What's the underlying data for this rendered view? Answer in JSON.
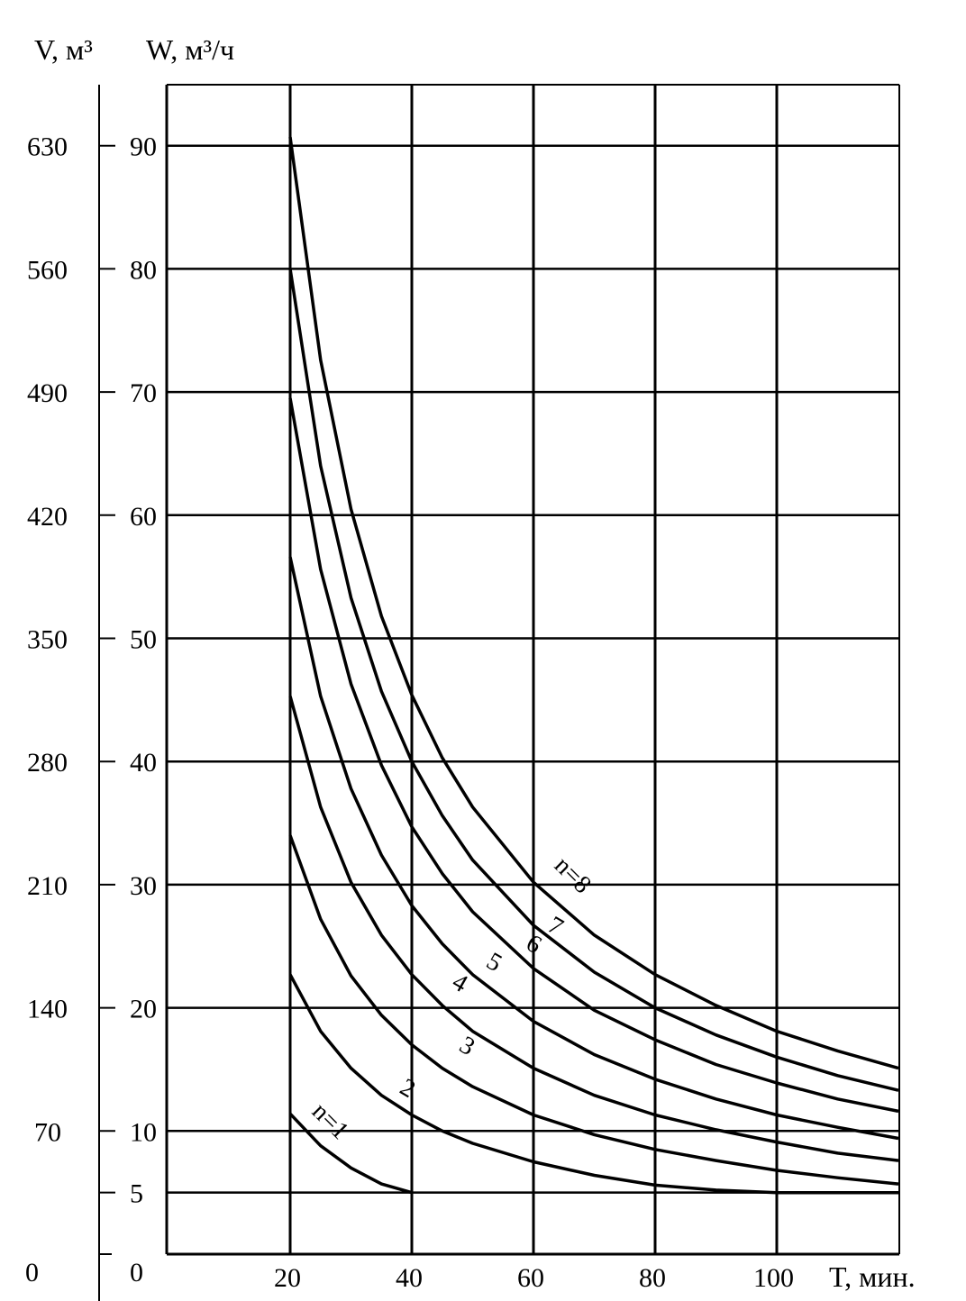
{
  "chart_data": {
    "type": "line",
    "title": "",
    "xlabel": "T, мин.",
    "ylabel_left": "V, м³",
    "ylabel_right": "W, м³/ч",
    "x_ticks": [
      "20",
      "40",
      "60",
      "80",
      "100"
    ],
    "v_ticks": [
      "0",
      "70",
      "140",
      "210",
      "280",
      "350",
      "420",
      "490",
      "560",
      "630"
    ],
    "w_ticks": [
      "0",
      "5",
      "10",
      "20",
      "30",
      "40",
      "50",
      "60",
      "70",
      "80",
      "90"
    ],
    "xlim": [
      0,
      120
    ],
    "wlim": [
      0,
      95
    ],
    "grid": true,
    "series": [
      {
        "name": "n=1",
        "label": "n=1",
        "points": [
          [
            20,
            11.4
          ],
          [
            25,
            8.8
          ],
          [
            30,
            7.0
          ],
          [
            35,
            5.7
          ],
          [
            40,
            5.0
          ]
        ]
      },
      {
        "name": "2",
        "label": "2",
        "points": [
          [
            20,
            22.7
          ],
          [
            25,
            18.1
          ],
          [
            30,
            15.1
          ],
          [
            35,
            12.9
          ],
          [
            40,
            11.3
          ],
          [
            45,
            10.0
          ],
          [
            50,
            9.0
          ],
          [
            60,
            7.5
          ],
          [
            70,
            6.4
          ],
          [
            80,
            5.6
          ],
          [
            90,
            5.2
          ],
          [
            100,
            5.0
          ],
          [
            120,
            5.0
          ]
        ]
      },
      {
        "name": "3",
        "label": "3",
        "points": [
          [
            20,
            34.0
          ],
          [
            25,
            27.2
          ],
          [
            30,
            22.6
          ],
          [
            35,
            19.4
          ],
          [
            40,
            17.0
          ],
          [
            45,
            15.1
          ],
          [
            50,
            13.6
          ],
          [
            60,
            11.3
          ],
          [
            70,
            9.7
          ],
          [
            80,
            8.5
          ],
          [
            90,
            7.6
          ],
          [
            100,
            6.8
          ],
          [
            110,
            6.2
          ],
          [
            120,
            5.7
          ]
        ]
      },
      {
        "name": "4",
        "label": "4",
        "points": [
          [
            20,
            45.3
          ],
          [
            25,
            36.3
          ],
          [
            30,
            30.2
          ],
          [
            35,
            25.9
          ],
          [
            40,
            22.7
          ],
          [
            45,
            20.2
          ],
          [
            50,
            18.1
          ],
          [
            60,
            15.1
          ],
          [
            70,
            12.9
          ],
          [
            80,
            11.3
          ],
          [
            90,
            10.1
          ],
          [
            100,
            9.1
          ],
          [
            110,
            8.2
          ],
          [
            120,
            7.6
          ]
        ]
      },
      {
        "name": "5",
        "label": "5",
        "points": [
          [
            20,
            56.6
          ],
          [
            25,
            45.3
          ],
          [
            30,
            37.8
          ],
          [
            35,
            32.4
          ],
          [
            40,
            28.3
          ],
          [
            45,
            25.2
          ],
          [
            50,
            22.7
          ],
          [
            60,
            18.9
          ],
          [
            70,
            16.2
          ],
          [
            80,
            14.2
          ],
          [
            90,
            12.6
          ],
          [
            100,
            11.3
          ],
          [
            110,
            10.3
          ],
          [
            120,
            9.4
          ]
        ]
      },
      {
        "name": "6",
        "label": "6",
        "points": [
          [
            20,
            69.5
          ],
          [
            25,
            55.6
          ],
          [
            30,
            46.3
          ],
          [
            35,
            39.7
          ],
          [
            40,
            34.7
          ],
          [
            45,
            30.9
          ],
          [
            50,
            27.8
          ],
          [
            60,
            23.2
          ],
          [
            70,
            19.8
          ],
          [
            80,
            17.4
          ],
          [
            90,
            15.4
          ],
          [
            100,
            13.9
          ],
          [
            110,
            12.6
          ],
          [
            120,
            11.6
          ]
        ]
      },
      {
        "name": "7",
        "label": "7",
        "points": [
          [
            20,
            80.0
          ],
          [
            25,
            64.0
          ],
          [
            30,
            53.3
          ],
          [
            35,
            45.7
          ],
          [
            40,
            40.0
          ],
          [
            45,
            35.6
          ],
          [
            50,
            32.0
          ],
          [
            60,
            26.7
          ],
          [
            70,
            22.9
          ],
          [
            80,
            20.0
          ],
          [
            90,
            17.8
          ],
          [
            100,
            16.0
          ],
          [
            110,
            14.5
          ],
          [
            120,
            13.3
          ]
        ]
      },
      {
        "name": "n=8",
        "label": "n=8",
        "points": [
          [
            20,
            90.7
          ],
          [
            25,
            72.6
          ],
          [
            30,
            60.5
          ],
          [
            35,
            51.8
          ],
          [
            40,
            45.4
          ],
          [
            45,
            40.3
          ],
          [
            50,
            36.3
          ],
          [
            60,
            30.2
          ],
          [
            70,
            25.9
          ],
          [
            80,
            22.7
          ],
          [
            90,
            20.2
          ],
          [
            100,
            18.1
          ],
          [
            110,
            16.5
          ],
          [
            120,
            15.1
          ]
        ]
      }
    ]
  }
}
